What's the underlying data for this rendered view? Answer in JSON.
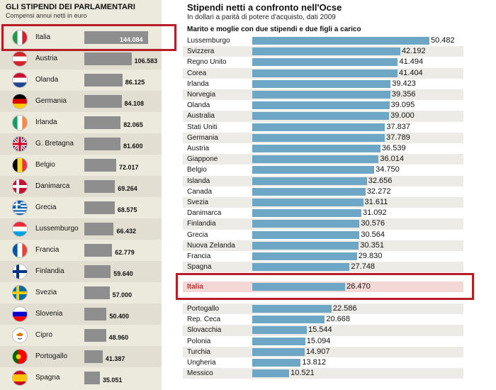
{
  "colors": {
    "left_bar": "#8e8e8e",
    "right_bar": "#6ea7c6",
    "italia_row": "#f4d8d6",
    "highlight": "#b81c24"
  },
  "chart_data": [
    {
      "type": "bar",
      "title": "GLI STIPENDI DEI PARLAMENTARI",
      "subtitle": "Compensi annui netti in euro",
      "categories": [
        "Italia",
        "Austria",
        "Olanda",
        "Germania",
        "Irlanda",
        "G. Bretagna",
        "Belgio",
        "Danimarca",
        "Grecia",
        "Lussemburgo",
        "Francia",
        "Finlandia",
        "Svezia",
        "Slovenia",
        "Cipro",
        "Portogallo",
        "Spagna"
      ],
      "value_labels": [
        "144.084",
        "106.583",
        "86.125",
        "84.108",
        "82.065",
        "81.600",
        "72.017",
        "69.264",
        "68.575",
        "66.432",
        "62.779",
        "59.640",
        "57.000",
        "50.400",
        "48.960",
        "41.387",
        "35.051"
      ],
      "values": [
        144084,
        106583,
        86125,
        84108,
        82065,
        81600,
        72017,
        69264,
        68575,
        66432,
        62779,
        59640,
        57000,
        50400,
        48960,
        41387,
        35051
      ],
      "flags": [
        "italy-flag",
        "austria-flag",
        "netherlands-flag",
        "germany-flag",
        "ireland-flag",
        "uk-flag",
        "belgium-flag",
        "denmark-flag",
        "greece-flag",
        "luxembourg-flag",
        "france-flag",
        "finland-flag",
        "sweden-flag",
        "slovenia-flag",
        "cyprus-flag",
        "portugal-flag",
        "spain-flag"
      ],
      "highlighted": "Italia"
    },
    {
      "type": "bar",
      "title": "Stipendi netti a confronto nell'Ocse",
      "subtitle": "In dollari a parità di potere d'acquisto, dati 2009",
      "subtitle2": "Marito e moglie con due stipendi e due figli a carico",
      "categories": [
        "Lussemburgo",
        "Svizzera",
        "Regno Unito",
        "Corea",
        "Irlanda",
        "Norvegia",
        "Olanda",
        "Australia",
        "Stati Uniti",
        "Germania",
        "Austria",
        "Giappone",
        "Belgio",
        "Islanda",
        "Canada",
        "Svezia",
        "Danimarca",
        "Finlandia",
        "Grecia",
        "Nuova Zelanda",
        "Francia",
        "Spagna",
        "Italia",
        "Portogallo",
        "Rep. Ceca",
        "Slovacchia",
        "Polonia",
        "Turchia",
        "Ungheria",
        "Messico"
      ],
      "value_labels": [
        "50.482",
        "42.192",
        "41.494",
        "41.404",
        "39.423",
        "39.356",
        "39.095",
        "39.000",
        "37.837",
        "37.789",
        "36.539",
        "36.014",
        "34.750",
        "32.656",
        "32.272",
        "31.611",
        "31.092",
        "30.576",
        "30.564",
        "30.351",
        "29.830",
        "27.748",
        "26.470",
        "22.586",
        "20.668",
        "15.544",
        "15.094",
        "14.907",
        "13.812",
        "10.521"
      ],
      "values": [
        50482,
        42192,
        41494,
        41404,
        39423,
        39356,
        39095,
        39000,
        37837,
        37789,
        36539,
        36014,
        34750,
        32656,
        32272,
        31611,
        31092,
        30576,
        30564,
        30351,
        29830,
        27748,
        26470,
        22586,
        20668,
        15544,
        15094,
        14907,
        13812,
        10521
      ],
      "highlighted": "Italia"
    }
  ]
}
